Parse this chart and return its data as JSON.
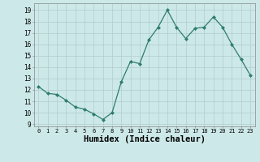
{
  "x": [
    0,
    1,
    2,
    3,
    4,
    5,
    6,
    7,
    8,
    9,
    10,
    11,
    12,
    13,
    14,
    15,
    16,
    17,
    18,
    19,
    20,
    21,
    22,
    23
  ],
  "y": [
    12.3,
    11.7,
    11.6,
    11.1,
    10.5,
    10.3,
    9.9,
    9.4,
    10.0,
    12.7,
    14.5,
    14.3,
    16.4,
    17.5,
    19.0,
    17.5,
    16.5,
    17.4,
    17.5,
    18.4,
    17.5,
    16.0,
    14.7,
    13.3
  ],
  "line_color": "#2e7d6e",
  "marker": "D",
  "marker_size": 2.0,
  "bg_color": "#cde8e8",
  "grid_color": "#b0cccc",
  "xlabel": "Humidex (Indice chaleur)",
  "xlabel_fontsize": 7.5,
  "xtick_labels": [
    "0",
    "1",
    "2",
    "3",
    "4",
    "5",
    "6",
    "7",
    "8",
    "9",
    "10",
    "11",
    "12",
    "13",
    "14",
    "15",
    "16",
    "17",
    "18",
    "19",
    "20",
    "21",
    "22",
    "23"
  ],
  "ylim": [
    8.8,
    19.6
  ],
  "yticks": [
    9,
    10,
    11,
    12,
    13,
    14,
    15,
    16,
    17,
    18,
    19
  ],
  "xlim": [
    -0.5,
    23.5
  ]
}
